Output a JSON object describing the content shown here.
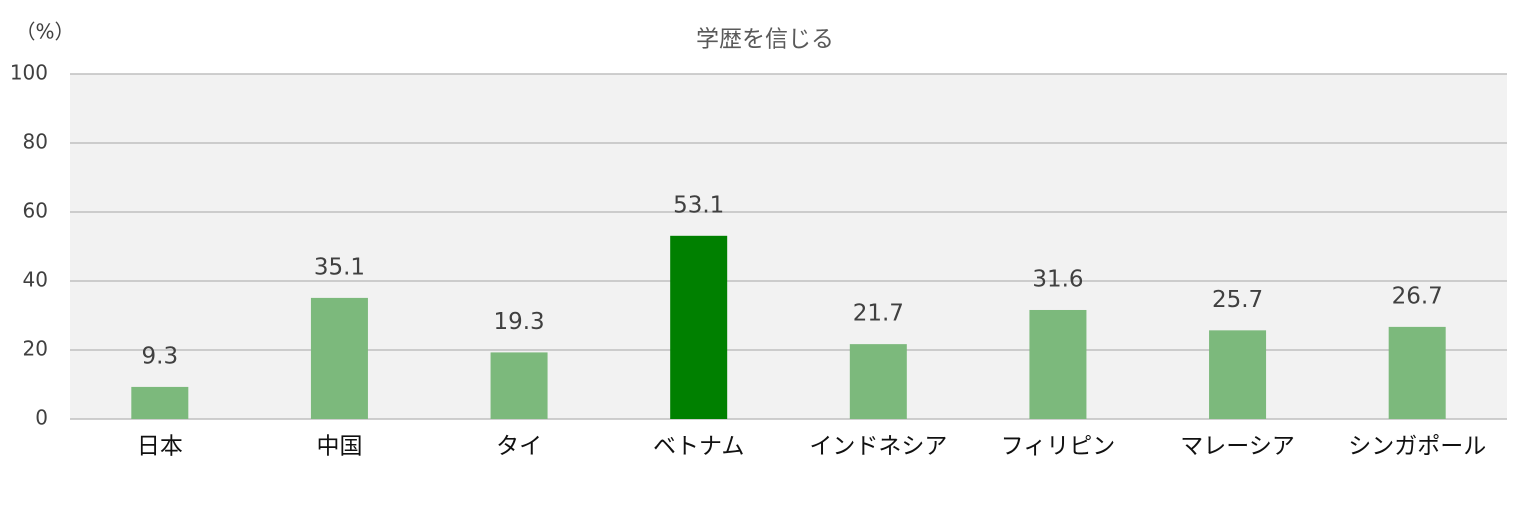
{
  "chart_data": {
    "type": "bar",
    "title": "学歴を信じる",
    "unit_label": "（%）",
    "categories": [
      "日本",
      "中国",
      "タイ",
      "ベトナム",
      "インドネシア",
      "フィリピン",
      "マレーシア",
      "シンガポール"
    ],
    "values": [
      9.3,
      35.1,
      19.3,
      53.1,
      21.7,
      31.6,
      25.7,
      26.7
    ],
    "colors": [
      "#7cb97c",
      "#7cb97c",
      "#7cb97c",
      "#008000",
      "#7cb97c",
      "#7cb97c",
      "#7cb97c",
      "#7cb97c"
    ],
    "ylim": [
      0,
      100
    ],
    "yticks": [
      0,
      20,
      40,
      60,
      80,
      100
    ],
    "grid": true
  }
}
